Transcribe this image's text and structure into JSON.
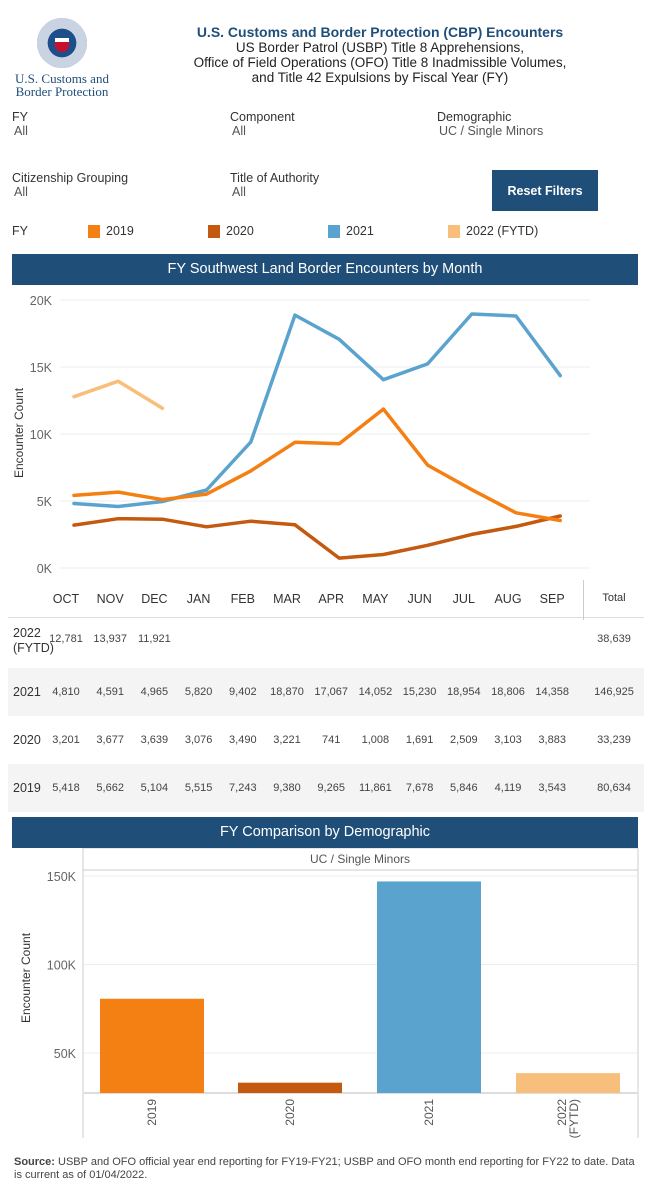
{
  "header": {
    "logo_line1": "U.S. Customs and",
    "logo_line2": "Border Protection",
    "title": "U.S. Customs and Border Protection (CBP) Encounters",
    "subtitle1": "US Border Patrol (USBP) Title 8 Apprehensions,",
    "subtitle2": "Office of Field Operations (OFO) Title 8 Inadmissible Volumes,",
    "subtitle3": "and Title 42 Expulsions by Fiscal Year (FY)"
  },
  "filters": {
    "fy": {
      "label": "FY",
      "value": "All"
    },
    "component": {
      "label": "Component",
      "value": "All"
    },
    "demographic": {
      "label": "Demographic",
      "value": "UC / Single Minors"
    },
    "citizenship": {
      "label": "Citizenship Grouping",
      "value": "All"
    },
    "title_authority": {
      "label": "Title of Authority",
      "value": "All"
    },
    "reset_label": "Reset Filters"
  },
  "legend": {
    "label": "FY",
    "items": [
      {
        "name": "2019",
        "color": "#f47f12"
      },
      {
        "name": "2020",
        "color": "#c45a10"
      },
      {
        "name": "2021",
        "color": "#5ba3cf"
      },
      {
        "name": "2022 (FYTD)",
        "color": "#f8be7c"
      }
    ]
  },
  "colors": {
    "band": "#1f4e79",
    "fy2019": "#f47f12",
    "fy2020": "#c45a10",
    "fy2021": "#5ba3cf",
    "fy2022": "#f8be7c"
  },
  "chart_data": [
    {
      "type": "line",
      "title": "FY Southwest Land Border Encounters by Month",
      "xlabel": "",
      "ylabel": "Encounter Count",
      "ylim": [
        0,
        20000
      ],
      "yticks": [
        "0K",
        "5K",
        "10K",
        "15K",
        "20K"
      ],
      "ytick_values": [
        0,
        5000,
        10000,
        15000,
        20000
      ],
      "grid": true,
      "categories": [
        "OCT",
        "NOV",
        "DEC",
        "JAN",
        "FEB",
        "MAR",
        "APR",
        "MAY",
        "JUN",
        "JUL",
        "AUG",
        "SEP"
      ],
      "series": [
        {
          "name": "2022 (FYTD)",
          "color": "#f8be7c",
          "values": [
            12781,
            13937,
            11921,
            null,
            null,
            null,
            null,
            null,
            null,
            null,
            null,
            null
          ]
        },
        {
          "name": "2021",
          "color": "#5ba3cf",
          "values": [
            4810,
            4591,
            4965,
            5820,
            9402,
            18870,
            17067,
            14052,
            15230,
            18954,
            18806,
            14358
          ]
        },
        {
          "name": "2020",
          "color": "#c45a10",
          "values": [
            3201,
            3677,
            3639,
            3076,
            3490,
            3221,
            741,
            1008,
            1691,
            2509,
            3103,
            3883
          ]
        },
        {
          "name": "2019",
          "color": "#f47f12",
          "values": [
            5418,
            5662,
            5104,
            5515,
            7243,
            9380,
            9265,
            11861,
            7678,
            5846,
            4119,
            3543
          ]
        }
      ]
    },
    {
      "type": "table",
      "columns": [
        "OCT",
        "NOV",
        "DEC",
        "JAN",
        "FEB",
        "MAR",
        "APR",
        "MAY",
        "JUN",
        "JUL",
        "AUG",
        "SEP",
        "Total"
      ],
      "rows": [
        {
          "year": "2022 (FYTD)",
          "year_line1": "2022",
          "year_line2": "(FYTD)",
          "cells": [
            "12,781",
            "13,937",
            "11,921",
            "",
            "",
            "",
            "",
            "",
            "",
            "",
            "",
            "",
            "38,639"
          ]
        },
        {
          "year": "2021",
          "cells": [
            "4,810",
            "4,591",
            "4,965",
            "5,820",
            "9,402",
            "18,870",
            "17,067",
            "14,052",
            "15,230",
            "18,954",
            "18,806",
            "14,358",
            "146,925"
          ]
        },
        {
          "year": "2020",
          "cells": [
            "3,201",
            "3,677",
            "3,639",
            "3,076",
            "3,490",
            "3,221",
            "741",
            "1,008",
            "1,691",
            "2,509",
            "3,103",
            "3,883",
            "33,239"
          ]
        },
        {
          "year": "2019",
          "cells": [
            "5,418",
            "5,662",
            "5,104",
            "5,515",
            "7,243",
            "9,380",
            "9,265",
            "11,861",
            "7,678",
            "5,846",
            "4,119",
            "3,543",
            "80,634"
          ]
        }
      ]
    },
    {
      "type": "bar",
      "title": "FY Comparison by Demographic",
      "panel_label": "UC / Single Minors",
      "xlabel": "",
      "ylabel": "Encounter Count",
      "ylim": [
        30000,
        155000
      ],
      "yticks": [
        "50K",
        "100K",
        "150K"
      ],
      "ytick_values": [
        50000,
        100000,
        150000
      ],
      "grid": true,
      "categories": [
        "2019",
        "2020",
        "2021",
        "2022 (FYTD)"
      ],
      "values": [
        80634,
        33239,
        146925,
        38639
      ],
      "colors": [
        "#f47f12",
        "#c45a10",
        "#5ba3cf",
        "#f8be7c"
      ]
    }
  ],
  "footer": {
    "source_label": "Source:",
    "source_text": " USBP and OFO official year end reporting for FY19-FY21; USBP and OFO month end reporting for FY22 to date. Data is current as of 01/04/2022."
  }
}
